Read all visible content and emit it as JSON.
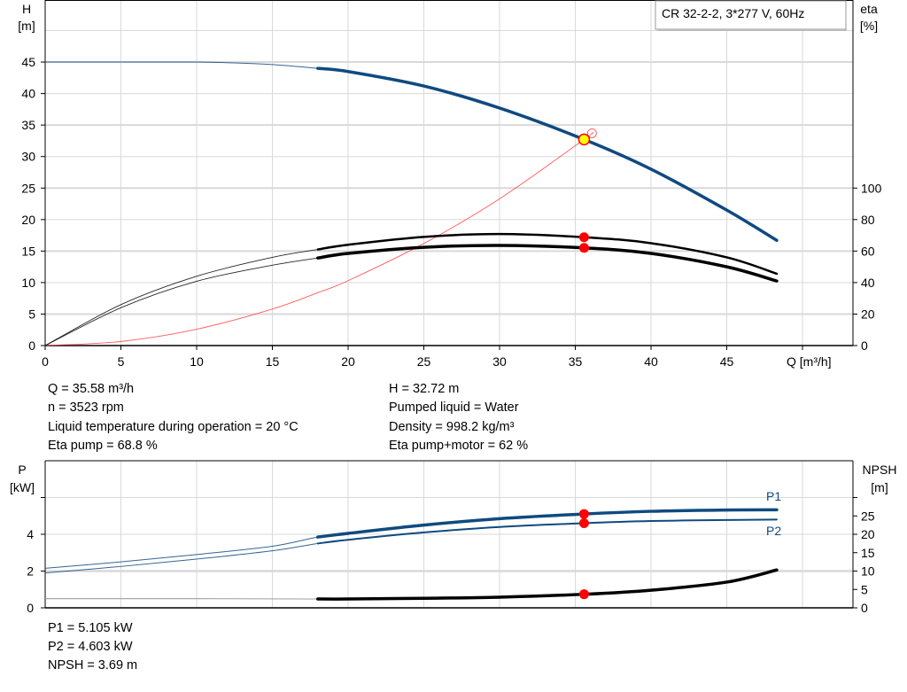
{
  "legend_box": "CR 32-2-2, 3*277 V, 60Hz",
  "info_top": {
    "left": [
      "Q = 35.58 m³/h",
      "n = 3523 rpm",
      "Liquid temperature during operation = 20 °C",
      "Eta pump = 68.8 %"
    ],
    "right": [
      "H = 32.72 m",
      "Pumped liquid = Water",
      "Density = 998.2 kg/m³",
      "Eta pump+motor = 62 %"
    ]
  },
  "info_bottom": [
    "P1 = 5.105 kW",
    "P2 = 4.603 kW",
    "NPSH = 3.69 m"
  ],
  "colors": {
    "head": "#0f4a80",
    "eta": "#000000",
    "system": "#ff4040",
    "power": "#0f4a80",
    "npsh": "#000000",
    "duty_point": "#ff0000",
    "duty_fill": "#ffff00",
    "grid": "#d9d9d9"
  },
  "chart_data": [
    {
      "type": "line",
      "xlabel": "Q [m³/h]",
      "ylabel_left": [
        "H",
        "[m]"
      ],
      "ylabel_right": [
        "eta",
        "[%]"
      ],
      "xlim": [
        0,
        53
      ],
      "x_ticks": [
        0,
        5,
        10,
        15,
        20,
        25,
        30,
        35,
        40,
        45
      ],
      "ylim_left": [
        0,
        50
      ],
      "y_ticks_left": [
        0,
        5,
        10,
        15,
        20,
        25,
        30,
        35,
        40,
        45
      ],
      "ylim_right": [
        0,
        200
      ],
      "y_ticks_right": [
        0,
        20,
        40,
        60,
        80,
        100
      ],
      "grid": true,
      "series": [
        {
          "id": "H",
          "axis": "left",
          "x": [
            0,
            5,
            10,
            12,
            15,
            18,
            20,
            25,
            30,
            35.58,
            40,
            45,
            48.3
          ],
          "y": [
            45,
            45,
            45,
            44.9,
            44.6,
            44,
            43.5,
            41.2,
            37.7,
            32.72,
            28,
            21.5,
            16.7
          ],
          "thick_from": 18
        },
        {
          "id": "eta_pump",
          "axis": "right",
          "x": [
            0,
            5,
            10,
            15,
            18,
            20,
            25,
            30,
            35.58,
            40,
            45,
            48.3
          ],
          "y": [
            0,
            26,
            44,
            56,
            61,
            64,
            69,
            70.8,
            68.8,
            65,
            56,
            45.6
          ],
          "thick_from": 18
        },
        {
          "id": "eta_pump_motor",
          "axis": "right",
          "x": [
            0,
            5,
            10,
            15,
            18,
            20,
            25,
            30,
            35.58,
            40,
            45,
            48.3
          ],
          "y": [
            0,
            24,
            40.8,
            51,
            55.6,
            58.5,
            62.4,
            63.6,
            62,
            58.5,
            50,
            41
          ],
          "thick_from": 18
        },
        {
          "id": "system",
          "axis": "left",
          "x": [
            0,
            5,
            10,
            15,
            18,
            20,
            25,
            30,
            35.58,
            36.1
          ],
          "y": [
            0,
            0.65,
            2.6,
            5.8,
            8.4,
            10.3,
            16.2,
            23.3,
            32.72,
            33.7
          ]
        }
      ],
      "duty_point": {
        "Q": 35.58,
        "H": 32.72,
        "eta_pump": 68.8,
        "eta_pump_motor": 62
      }
    },
    {
      "type": "line",
      "ylabel_left": [
        "P",
        "[kW]"
      ],
      "ylabel_right": [
        "NPSH",
        "[m]"
      ],
      "xlim": [
        0,
        53
      ],
      "ylim_left": [
        0,
        8
      ],
      "y_ticks_left": [
        0,
        2,
        4,
        6
      ],
      "y_labels_left": [
        "0",
        "2",
        "4",
        ""
      ],
      "ylim_right": [
        0,
        40
      ],
      "y_ticks_right": [
        0,
        5,
        10,
        15,
        20,
        25,
        30
      ],
      "y_labels_right": [
        "0",
        "5",
        "10",
        "15",
        "20",
        "25",
        ""
      ],
      "grid": true,
      "series": [
        {
          "id": "P1",
          "name": "P1",
          "axis": "left",
          "x": [
            0,
            5,
            10,
            15,
            18,
            20,
            25,
            30,
            35.58,
            40,
            45,
            48.3
          ],
          "y": [
            2.15,
            2.5,
            2.9,
            3.35,
            3.85,
            4.05,
            4.5,
            4.85,
            5.105,
            5.25,
            5.32,
            5.33
          ],
          "thick_from": 18
        },
        {
          "id": "P2",
          "name": "P2",
          "axis": "left",
          "x": [
            0,
            5,
            10,
            15,
            18,
            20,
            25,
            30,
            35.58,
            40,
            45,
            48.3
          ],
          "y": [
            1.9,
            2.25,
            2.65,
            3.1,
            3.5,
            3.7,
            4.1,
            4.4,
            4.603,
            4.72,
            4.78,
            4.8
          ],
          "thick_from": 18
        },
        {
          "id": "NPSH",
          "axis": "right",
          "x": [
            0,
            10,
            18,
            20,
            25,
            30,
            35.58,
            40,
            45,
            48.3
          ],
          "y": [
            2.5,
            2.5,
            2.4,
            2.4,
            2.6,
            2.9,
            3.69,
            4.8,
            7,
            10.3
          ],
          "thick_from": 18
        }
      ],
      "duty_point": {
        "Q": 35.58,
        "P1": 5.105,
        "P2": 4.603,
        "NPSH": 3.69
      }
    }
  ]
}
